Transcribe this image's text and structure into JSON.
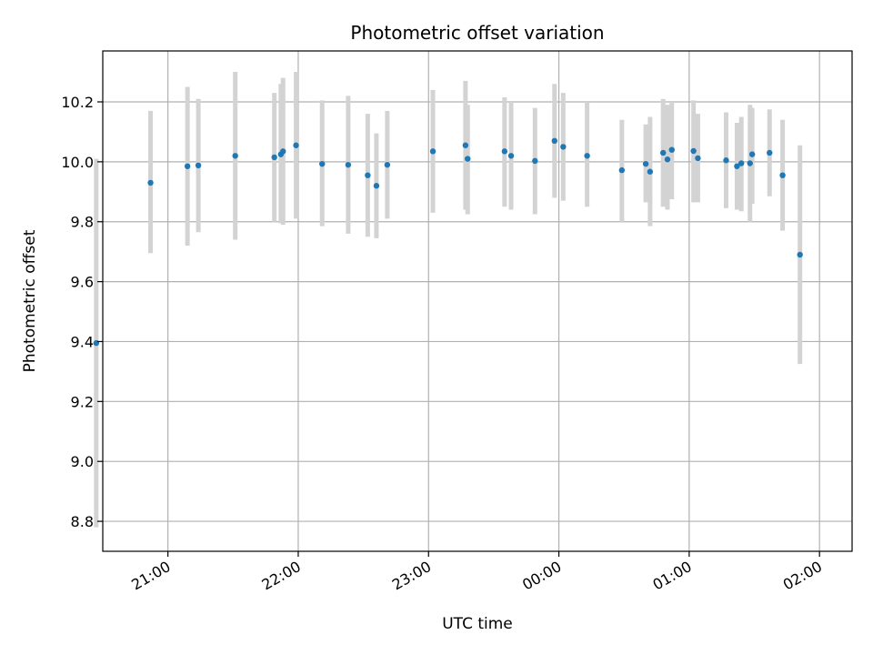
{
  "chart_data": {
    "type": "scatter",
    "title": "Photometric offset variation",
    "xlabel": "UTC time",
    "ylabel": "Photometric offset",
    "x_ticks": [
      "21:00",
      "22:00",
      "23:00",
      "00:00",
      "01:00",
      "02:00"
    ],
    "y_ticks": [
      "8.8",
      "9.0",
      "9.2",
      "9.4",
      "9.6",
      "9.8",
      "10.0",
      "10.2"
    ],
    "ylim": [
      8.7,
      10.37
    ],
    "xlim": [
      "20:30",
      "02:15"
    ],
    "grid": true,
    "colors": {
      "point": "#1f77b4",
      "errorbar": "#d3d3d3",
      "grid": "#b0b0b0"
    },
    "points": [
      {
        "t": "20:27",
        "y": 9.395,
        "lo": 8.78,
        "hi": 10.01
      },
      {
        "t": "20:52",
        "y": 9.93,
        "lo": 9.695,
        "hi": 10.17
      },
      {
        "t": "21:09",
        "y": 9.985,
        "lo": 9.72,
        "hi": 10.25
      },
      {
        "t": "21:14",
        "y": 9.988,
        "lo": 9.765,
        "hi": 10.21
      },
      {
        "t": "21:31",
        "y": 10.02,
        "lo": 9.74,
        "hi": 10.3
      },
      {
        "t": "21:49",
        "y": 10.015,
        "lo": 9.8,
        "hi": 10.23
      },
      {
        "t": "21:52",
        "y": 10.025,
        "lo": 9.795,
        "hi": 10.26
      },
      {
        "t": "21:53",
        "y": 10.035,
        "lo": 9.79,
        "hi": 10.28
      },
      {
        "t": "21:59",
        "y": 10.055,
        "lo": 9.81,
        "hi": 10.3
      },
      {
        "t": "22:11",
        "y": 9.993,
        "lo": 9.785,
        "hi": 10.205
      },
      {
        "t": "22:23",
        "y": 9.99,
        "lo": 9.76,
        "hi": 10.22
      },
      {
        "t": "22:32",
        "y": 9.955,
        "lo": 9.75,
        "hi": 10.16
      },
      {
        "t": "22:36",
        "y": 9.92,
        "lo": 9.745,
        "hi": 10.095
      },
      {
        "t": "22:41",
        "y": 9.99,
        "lo": 9.81,
        "hi": 10.17
      },
      {
        "t": "23:02",
        "y": 10.035,
        "lo": 9.83,
        "hi": 10.24
      },
      {
        "t": "23:17",
        "y": 10.055,
        "lo": 9.84,
        "hi": 10.27
      },
      {
        "t": "23:18",
        "y": 10.01,
        "lo": 9.825,
        "hi": 10.19
      },
      {
        "t": "23:35",
        "y": 10.035,
        "lo": 9.85,
        "hi": 10.215
      },
      {
        "t": "23:38",
        "y": 10.02,
        "lo": 9.84,
        "hi": 10.2
      },
      {
        "t": "23:49",
        "y": 10.003,
        "lo": 9.825,
        "hi": 10.18
      },
      {
        "t": "23:58",
        "y": 10.07,
        "lo": 9.88,
        "hi": 10.26
      },
      {
        "t": "00:02",
        "y": 10.05,
        "lo": 9.87,
        "hi": 10.23
      },
      {
        "t": "00:13",
        "y": 10.02,
        "lo": 9.85,
        "hi": 10.2
      },
      {
        "t": "00:29",
        "y": 9.972,
        "lo": 9.8,
        "hi": 10.14
      },
      {
        "t": "00:40",
        "y": 9.993,
        "lo": 9.865,
        "hi": 10.125
      },
      {
        "t": "00:42",
        "y": 9.967,
        "lo": 9.785,
        "hi": 10.15
      },
      {
        "t": "00:48",
        "y": 10.03,
        "lo": 9.85,
        "hi": 10.21
      },
      {
        "t": "00:50",
        "y": 10.008,
        "lo": 9.84,
        "hi": 10.19
      },
      {
        "t": "00:52",
        "y": 10.04,
        "lo": 9.875,
        "hi": 10.2
      },
      {
        "t": "01:02",
        "y": 10.036,
        "lo": 9.865,
        "hi": 10.205
      },
      {
        "t": "01:04",
        "y": 10.012,
        "lo": 9.865,
        "hi": 10.16
      },
      {
        "t": "01:17",
        "y": 10.005,
        "lo": 9.845,
        "hi": 10.165
      },
      {
        "t": "01:22",
        "y": 9.985,
        "lo": 9.84,
        "hi": 10.13
      },
      {
        "t": "01:24",
        "y": 9.995,
        "lo": 9.835,
        "hi": 10.15
      },
      {
        "t": "01:28",
        "y": 9.995,
        "lo": 9.8,
        "hi": 10.19
      },
      {
        "t": "01:29",
        "y": 10.025,
        "lo": 9.86,
        "hi": 10.18
      },
      {
        "t": "01:37",
        "y": 10.03,
        "lo": 9.885,
        "hi": 10.175
      },
      {
        "t": "01:43",
        "y": 9.955,
        "lo": 9.77,
        "hi": 10.14
      },
      {
        "t": "01:51",
        "y": 9.69,
        "lo": 9.325,
        "hi": 10.055
      }
    ]
  }
}
